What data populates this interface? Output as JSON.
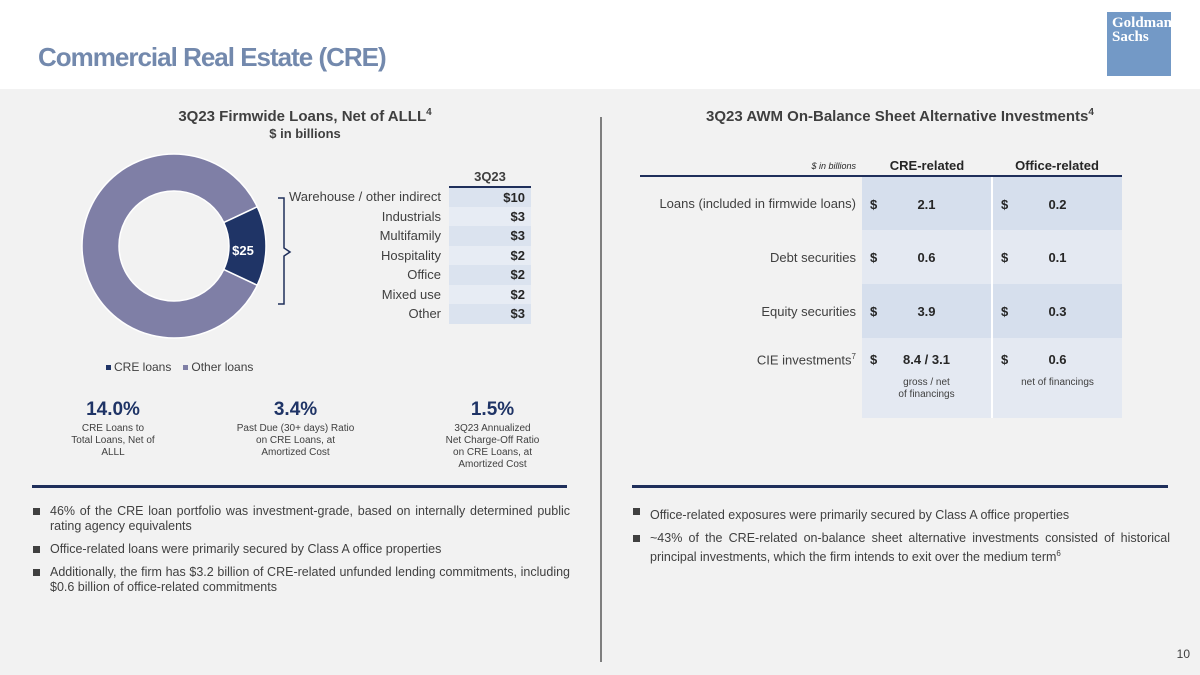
{
  "header": {
    "title": "Commercial Real Estate (CRE)",
    "logo_line1": "Goldman",
    "logo_line2": "Sachs"
  },
  "left": {
    "title": "3Q23 Firmwide Loans, Net of ALLL",
    "title_sup": "4",
    "subtitle": "$ in billions",
    "donut_label": "$25",
    "table_header": "3Q23",
    "rows": [
      {
        "label": "Warehouse / other indirect",
        "value": "$10"
      },
      {
        "label": "Industrials",
        "value": "$3"
      },
      {
        "label": "Multifamily",
        "value": "$3"
      },
      {
        "label": "Hospitality",
        "value": "$2"
      },
      {
        "label": "Office",
        "value": "$2"
      },
      {
        "label": "Mixed use",
        "value": "$2"
      },
      {
        "label": "Other",
        "value": "$3"
      }
    ],
    "legend": [
      {
        "label": "CRE loans",
        "color": "#1f3466"
      },
      {
        "label": "Other loans",
        "color": "#7f7fa6"
      }
    ],
    "stats": [
      {
        "value": "14.0%",
        "line1": "CRE Loans to",
        "line2": "Total Loans, Net of",
        "line3": "ALLL",
        "line4": ""
      },
      {
        "value": "3.4%",
        "line1": "Past Due (30+ days) Ratio",
        "line2": "on CRE Loans, at",
        "line3": "Amortized Cost",
        "line4": ""
      },
      {
        "value": "1.5%",
        "line1": "3Q23 Annualized",
        "line2": "Net Charge-Off Ratio",
        "line3": "on CRE Loans, at",
        "line4": "Amortized Cost"
      }
    ],
    "bullets": [
      {
        "text": "46% of the CRE loan portfolio was investment-grade, based on internally determined public rating agency equivalents"
      },
      {
        "text": "Office-related loans were primarily secured by Class A office properties"
      },
      {
        "text": "Additionally, the firm has $3.2 billion of CRE-related unfunded lending commitments, including $0.6 billion of office-related commitments"
      }
    ]
  },
  "chart_data": {
    "type": "pie",
    "title": "3Q23 Firmwide Loans, Net of ALLL",
    "categories": [
      "CRE loans",
      "Other loans"
    ],
    "values": [
      14.0,
      86.0
    ],
    "units": "percent of total loans",
    "center_hole": true,
    "annotation": "$25"
  },
  "right": {
    "title": "3Q23 AWM On-Balance Sheet Alternative Investments",
    "title_sup": "4",
    "unit_label": "$ in billions",
    "col1": "CRE-related",
    "col2": "Office-related",
    "rows": [
      {
        "label": "Loans (included in firmwide loans)",
        "cur1": "$",
        "v1": "2.1",
        "cur2": "$",
        "v2": "0.2"
      },
      {
        "label": "Debt securities",
        "cur1": "$",
        "v1": "0.6",
        "cur2": "$",
        "v2": "0.1"
      },
      {
        "label": "Equity securities",
        "cur1": "$",
        "v1": "3.9",
        "cur2": "$",
        "v2": "0.3"
      }
    ],
    "cie": {
      "label": "CIE investments",
      "label_sup": "7",
      "cur1": "$",
      "v1": "8.4 / 3.1",
      "note1a": "gross / net",
      "note1b": "of financings",
      "cur2": "$",
      "v2": "0.6",
      "note2": "net of financings"
    },
    "bullets": [
      {
        "text": "Office-related exposures were primarily secured by Class A office properties",
        "sup": ""
      },
      {
        "text": "~43% of the CRE-related on-balance sheet alternative investments consisted of historical principal investments, which the firm intends to exit over the medium term",
        "sup": "6"
      }
    ]
  },
  "footer": {
    "page_number": "10"
  }
}
